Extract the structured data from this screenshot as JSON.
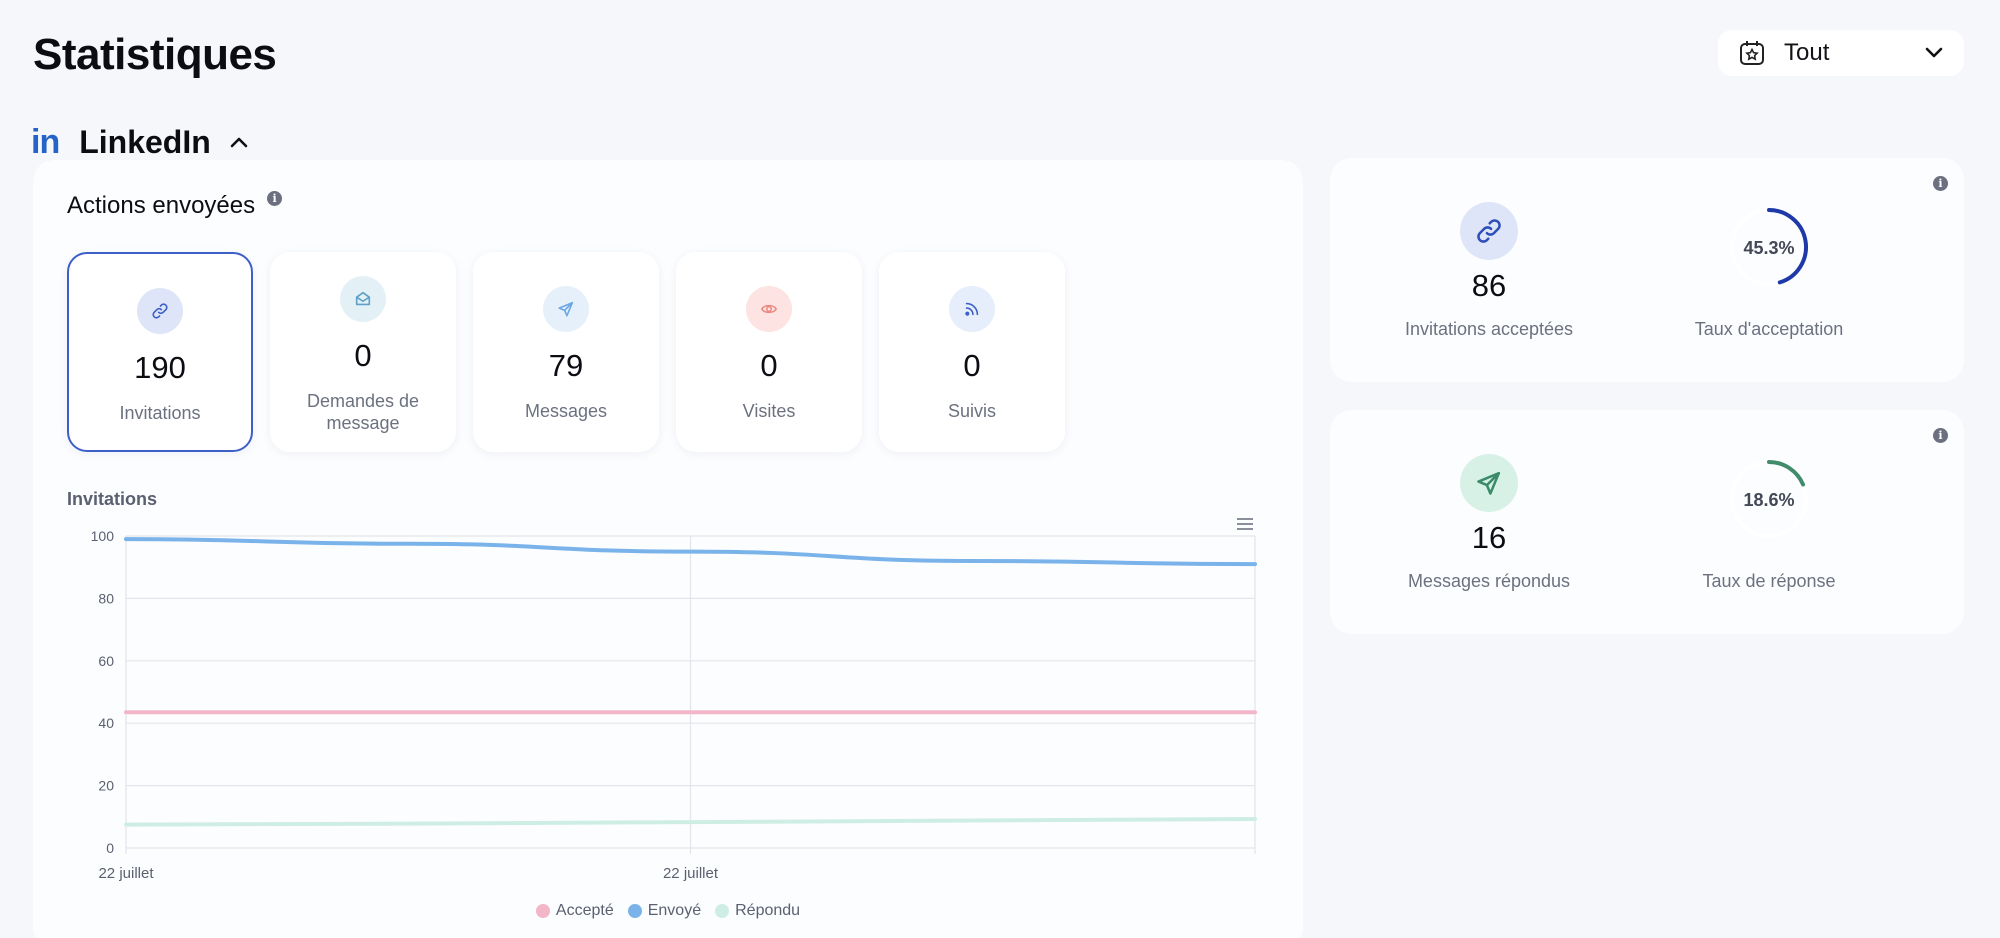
{
  "page": {
    "title": "Statistiques"
  },
  "period_select": {
    "value": "Tout",
    "icon": "calendar-star-icon"
  },
  "section": {
    "platform_logo": "in",
    "title": "LinkedIn",
    "collapse_icon": "chevron-up-icon"
  },
  "actions_card": {
    "title": "Actions envoyées",
    "info_icon": "i",
    "tiles": [
      {
        "value": "190",
        "label": "Invitations",
        "icon": "link-icon",
        "icon_bg": "#dfe5f8",
        "icon_color": "#3d5fc7",
        "active": true
      },
      {
        "value": "0",
        "label": "Demandes de message",
        "icon": "envelope-icon",
        "icon_bg": "#e3f1f7",
        "icon_color": "#5fa0c9",
        "active": false
      },
      {
        "value": "79",
        "label": "Messages",
        "icon": "send-icon",
        "icon_bg": "#e6f0fb",
        "icon_color": "#6aa7e6",
        "active": false
      },
      {
        "value": "0",
        "label": "Visites",
        "icon": "eye-icon",
        "icon_bg": "#fde3e1",
        "icon_color": "#ec8a82",
        "active": false
      },
      {
        "value": "0",
        "label": "Suivis",
        "icon": "rss-icon",
        "icon_bg": "#e6eefb",
        "icon_color": "#3d5fc7",
        "active": false
      }
    ]
  },
  "chart_data": {
    "type": "line",
    "title": "Invitations",
    "x": [
      "22 juillet",
      "22 juillet"
    ],
    "y_ticks": [
      "0",
      "20",
      "40",
      "60",
      "80",
      "100"
    ],
    "ylim": [
      0,
      100
    ],
    "grid": true,
    "legend_position": "bottom",
    "series": [
      {
        "name": "Accepté",
        "color": "#f3b6c8",
        "points": [
          [
            0,
            43.5
          ],
          [
            0.25,
            43.5
          ],
          [
            0.5,
            43.5
          ],
          [
            0.75,
            43.5
          ],
          [
            1,
            43.5
          ]
        ]
      },
      {
        "name": "Envoyé",
        "color": "#7ab3ea",
        "points": [
          [
            0,
            99
          ],
          [
            0.25,
            97.5
          ],
          [
            0.5,
            95
          ],
          [
            0.75,
            92
          ],
          [
            1,
            91
          ]
        ]
      },
      {
        "name": "Répondu",
        "color": "#cfeee3",
        "points": [
          [
            0,
            7.5
          ],
          [
            0.25,
            7.8
          ],
          [
            0.5,
            8.3
          ],
          [
            0.75,
            8.8
          ],
          [
            1,
            9.3
          ]
        ]
      }
    ]
  },
  "stat_cards": [
    {
      "value": "86",
      "label": "Invitations acceptées",
      "icon": "link-icon",
      "icon_bg": "#dfe5f8",
      "icon_color": "#2f4fb8",
      "rate_text": "45.3%",
      "rate": 45.3,
      "rate_label": "Taux d'acceptation",
      "gauge_color": "#1f3aa8"
    },
    {
      "value": "16",
      "label": "Messages répondus",
      "icon": "send-icon",
      "icon_bg": "#d8f1e6",
      "icon_color": "#3b8a6a",
      "rate_text": "18.6%",
      "rate": 18.6,
      "rate_label": "Taux de réponse",
      "gauge_color": "#3f8b6c"
    }
  ]
}
